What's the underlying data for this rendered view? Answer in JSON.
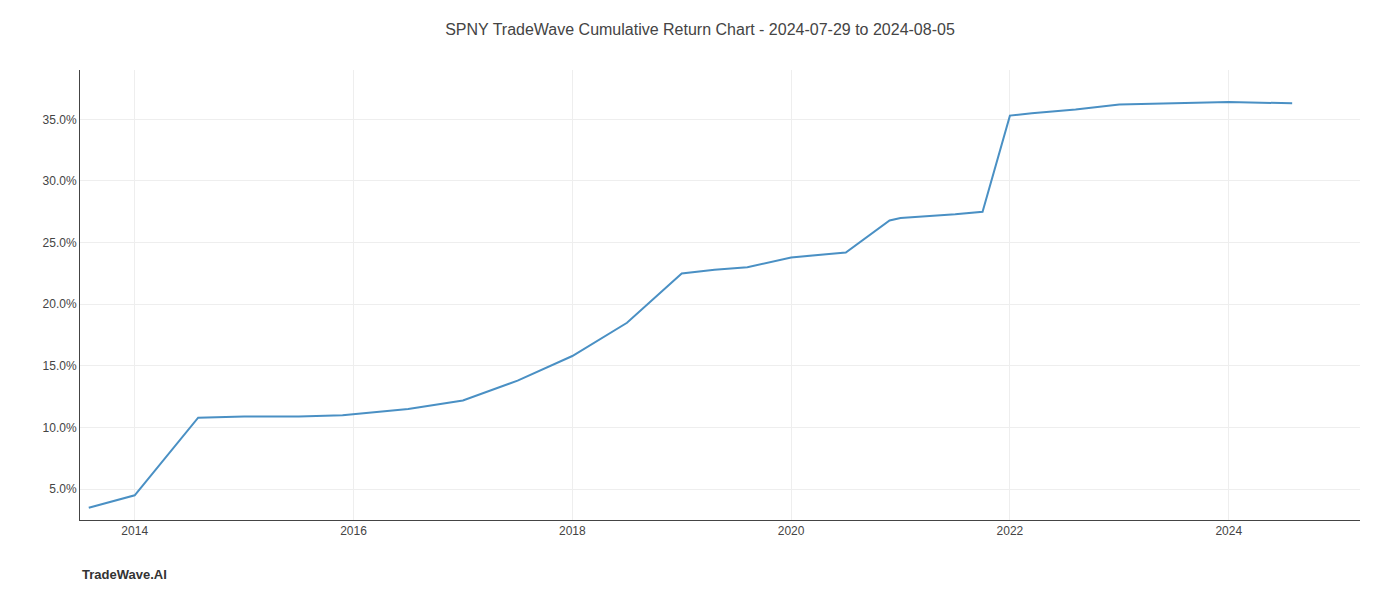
{
  "chart_data": {
    "type": "line",
    "title": "SPNY TradeWave Cumulative Return Chart - 2024-07-29 to 2024-08-05",
    "annotations": [
      "TradeWave.AI"
    ],
    "x": [
      2013.58,
      2014.0,
      2014.58,
      2015.0,
      2015.5,
      2015.9,
      2016.5,
      2017.0,
      2017.5,
      2018.0,
      2018.5,
      2019.0,
      2019.3,
      2019.6,
      2020.0,
      2020.5,
      2020.9,
      2021.0,
      2021.5,
      2021.75,
      2022.0,
      2022.2,
      2022.6,
      2023.0,
      2023.5,
      2024.0,
      2024.58
    ],
    "values": [
      3.5,
      4.5,
      10.8,
      10.9,
      10.9,
      11.0,
      11.5,
      12.2,
      13.8,
      15.8,
      18.5,
      22.5,
      22.8,
      23.0,
      23.8,
      24.2,
      26.8,
      27.0,
      27.3,
      27.5,
      35.3,
      35.5,
      35.8,
      36.2,
      36.3,
      36.4,
      36.3
    ],
    "color": "#4a90c4",
    "xlim": [
      2013.5,
      2025.2
    ],
    "ylim": [
      2.5,
      39.0
    ],
    "xticks": [
      2014,
      2016,
      2018,
      2020,
      2022,
      2024
    ],
    "yticks": [
      {
        "value": 5.0,
        "label": "5.0%"
      },
      {
        "value": 10.0,
        "label": "10.0%"
      },
      {
        "value": 15.0,
        "label": "15.0%"
      },
      {
        "value": 20.0,
        "label": "20.0%"
      },
      {
        "value": 25.0,
        "label": "25.0%"
      },
      {
        "value": 30.0,
        "label": "30.0%"
      },
      {
        "value": 35.0,
        "label": "35.0%"
      }
    ],
    "grid": true
  }
}
